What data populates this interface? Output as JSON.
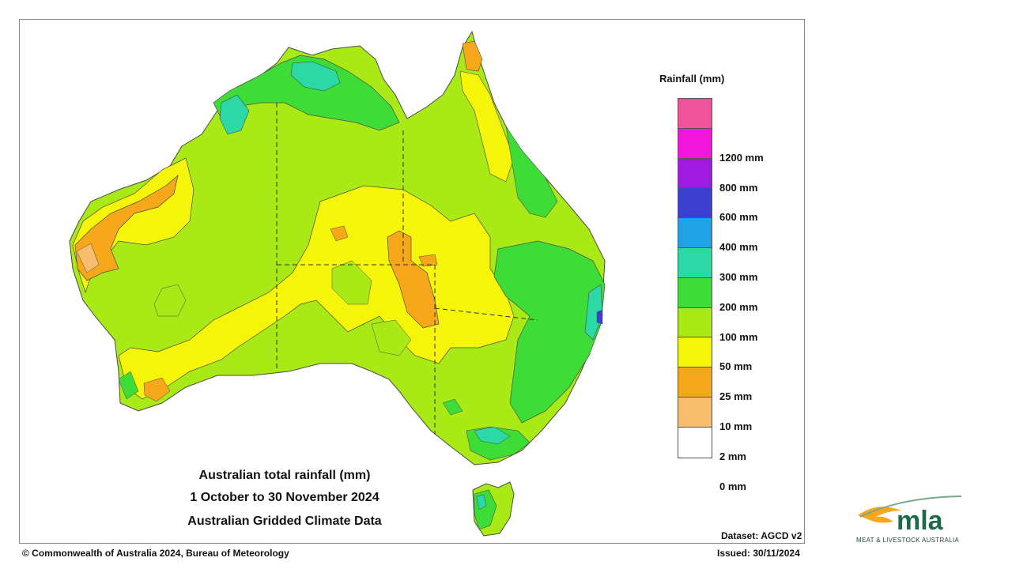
{
  "map": {
    "legend": {
      "title": "Rainfall (mm)",
      "bins": [
        {
          "label": "",
          "color": "#f2529b"
        },
        {
          "label": "1200 mm",
          "color": "#f216dd"
        },
        {
          "label": "800 mm",
          "color": "#a11ae0"
        },
        {
          "label": "600 mm",
          "color": "#3c3fcf"
        },
        {
          "label": "400 mm",
          "color": "#20a2e6"
        },
        {
          "label": "300 mm",
          "color": "#2bd9a4"
        },
        {
          "label": "200 mm",
          "color": "#3ddc37"
        },
        {
          "label": "100 mm",
          "color": "#a9ea16"
        },
        {
          "label": "50 mm",
          "color": "#f5f50a"
        },
        {
          "label": "25 mm",
          "color": "#f6a71a"
        },
        {
          "label": "10 mm",
          "color": "#f9bd6e"
        },
        {
          "label": "2 mm",
          "color": "#ffffff"
        },
        {
          "label": "0 mm",
          "color": ""
        }
      ]
    },
    "caption": {
      "line1": "Australian total rainfall (mm)",
      "line2": "1 October to 30 November 2024",
      "line3": "Australian Gridded Climate Data"
    },
    "dataset": "Dataset: AGCD v2",
    "footer": {
      "copyright": "© Commonwealth of Australia 2024, Bureau of Meteorology",
      "issued": "Issued: 30/11/2024"
    }
  },
  "logo": {
    "name": "mla",
    "tagline": "MEAT & LIVESTOCK AUSTRALIA"
  }
}
